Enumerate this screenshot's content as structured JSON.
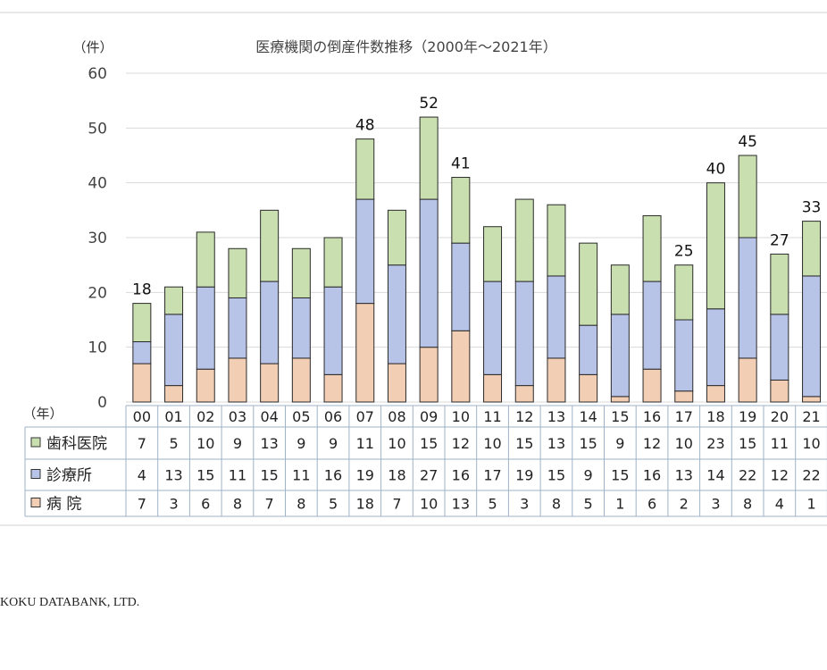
{
  "footer_text": "KOKU DATABANK, LTD.",
  "colors": {
    "hospital": "#f2ceb4",
    "clinic": "#b7c4e7",
    "dental": "#c9dfb0",
    "outline": "#2a2a2a",
    "grid": "#d9d9d9",
    "table_border": "#9fb3c8"
  },
  "chart_data": {
    "type": "bar",
    "stacked": true,
    "title": "医療機関の倒産件数推移（2000年～2021年）",
    "ylabel": "（件）",
    "xlabel": "（年）",
    "ylim": [
      0,
      60
    ],
    "yticks": [
      0,
      10,
      20,
      30,
      40,
      50,
      60
    ],
    "grid": true,
    "categories": [
      "00",
      "01",
      "02",
      "03",
      "04",
      "05",
      "06",
      "07",
      "08",
      "09",
      "10",
      "11",
      "12",
      "13",
      "14",
      "15",
      "16",
      "17",
      "18",
      "19",
      "20",
      "21"
    ],
    "series": [
      {
        "name": "病 院",
        "values": [
          7,
          3,
          6,
          8,
          7,
          8,
          5,
          18,
          7,
          10,
          13,
          5,
          3,
          8,
          5,
          1,
          6,
          2,
          3,
          8,
          4,
          1
        ]
      },
      {
        "name": "診療所",
        "values": [
          4,
          13,
          15,
          11,
          15,
          11,
          16,
          19,
          18,
          27,
          16,
          17,
          19,
          15,
          9,
          15,
          16,
          13,
          14,
          22,
          12,
          22
        ]
      },
      {
        "name": "歯科医院",
        "values": [
          7,
          5,
          10,
          9,
          13,
          9,
          9,
          11,
          10,
          15,
          12,
          10,
          15,
          13,
          15,
          9,
          12,
          10,
          23,
          15,
          11,
          10
        ]
      }
    ],
    "annotations": [
      {
        "category": "00",
        "text": "18"
      },
      {
        "category": "07",
        "text": "48"
      },
      {
        "category": "09",
        "text": "52"
      },
      {
        "category": "10",
        "text": "41"
      },
      {
        "category": "17",
        "text": "25"
      },
      {
        "category": "18",
        "text": "40"
      },
      {
        "category": "19",
        "text": "45"
      },
      {
        "category": "20",
        "text": "27"
      },
      {
        "category": "21",
        "text": "33"
      }
    ],
    "table_row_order": [
      "歯科医院",
      "診療所",
      "病 院"
    ]
  }
}
